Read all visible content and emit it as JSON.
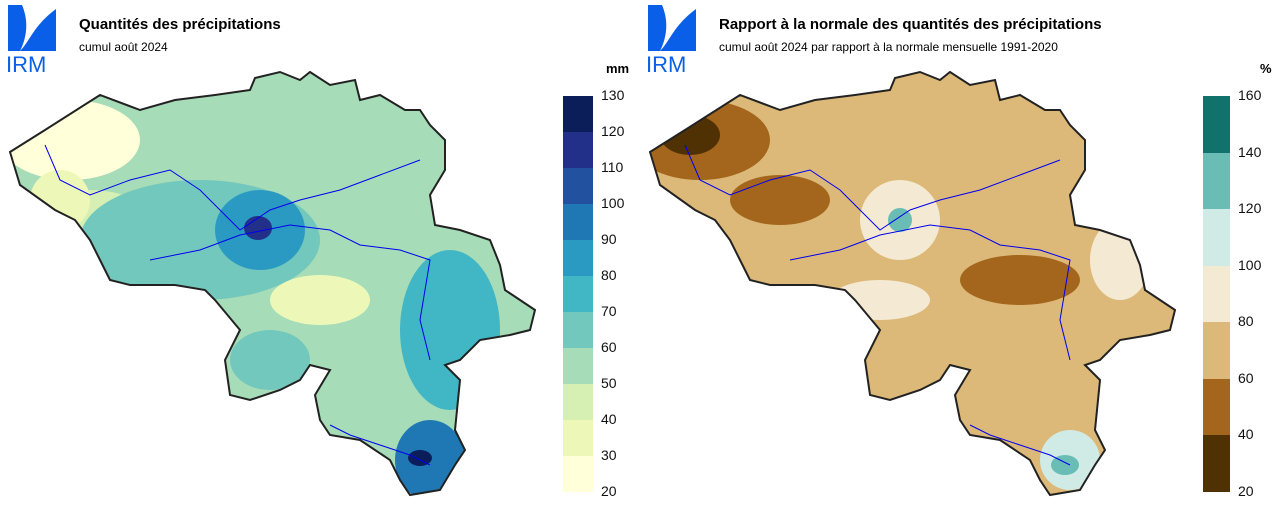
{
  "left": {
    "logo": "IRM",
    "title": "Quantités des précipitations",
    "subtitle": "cumul août 2024",
    "unit": "mm",
    "legend": {
      "ticks": [
        "130",
        "120",
        "110",
        "100",
        "90",
        "80",
        "70",
        "60",
        "50",
        "40",
        "30",
        "20"
      ],
      "colors": [
        "#0c1e5a",
        "#22308a",
        "#2251a0",
        "#1f78b4",
        "#2b9ac2",
        "#41b6c4",
        "#73c8bd",
        "#a6dcb7",
        "#d6efb3",
        "#edf8b8",
        "#ffffd9"
      ]
    }
  },
  "right": {
    "logo": "IRM",
    "title": "Rapport à la normale des quantités des précipitations",
    "subtitle": "cumul août 2024 par rapport à la normale mensuelle 1991-2020",
    "unit": "%",
    "legend": {
      "ticks": [
        "160",
        "140",
        "120",
        "100",
        "80",
        "60",
        "40",
        "20"
      ],
      "colors": [
        "#10726a",
        "#6abdb4",
        "#d0ebe6",
        "#f4ead3",
        "#dcb978",
        "#a3661c",
        "#4f3104"
      ]
    }
  }
}
